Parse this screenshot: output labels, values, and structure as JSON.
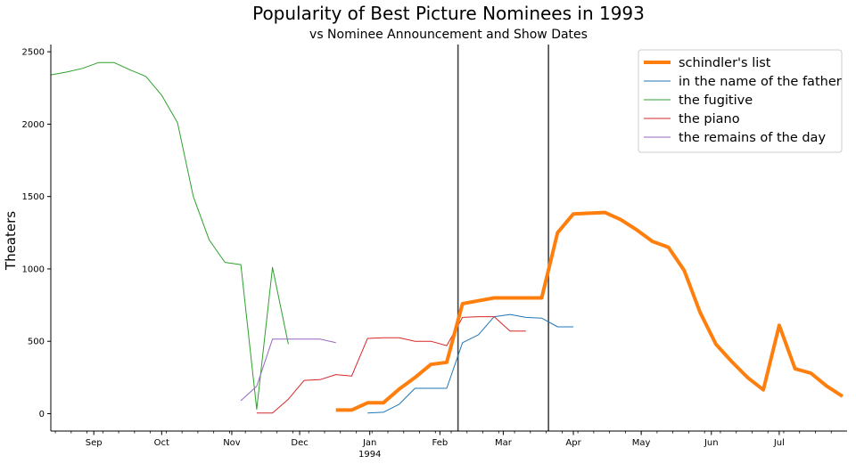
{
  "chart_data": {
    "type": "line",
    "title": "Popularity of Best Picture Nominees in 1993",
    "subtitle": "vs Nominee Announcement and Show Dates",
    "xlabel": "",
    "ylabel": "Theaters",
    "xlim": [
      "1993-08-13",
      "1994-07-31"
    ],
    "ylim": [
      -120,
      2550
    ],
    "yticks": [
      0,
      500,
      1000,
      1500,
      2000,
      2500
    ],
    "xticks": [
      {
        "date": "1993-09-01",
        "label": "Sep"
      },
      {
        "date": "1993-10-01",
        "label": "Oct"
      },
      {
        "date": "1993-11-01",
        "label": "Nov"
      },
      {
        "date": "1993-12-01",
        "label": "Dec"
      },
      {
        "date": "1994-01-01",
        "label": "Jan",
        "sublabel": "1994"
      },
      {
        "date": "1994-02-01",
        "label": "Feb"
      },
      {
        "date": "1994-03-01",
        "label": "Mar"
      },
      {
        "date": "1994-04-01",
        "label": "Apr"
      },
      {
        "date": "1994-05-01",
        "label": "May"
      },
      {
        "date": "1994-06-01",
        "label": "Jun"
      },
      {
        "date": "1994-07-01",
        "label": "Jul"
      }
    ],
    "vlines": [
      "1994-02-09",
      "1994-03-21"
    ],
    "grid": false,
    "legend_position": "top-right",
    "series": [
      {
        "name": "schindler's list",
        "color": "#ff7f0e",
        "linewidth": 4,
        "x": [
          "1993-12-17",
          "1993-12-24",
          "1993-12-31",
          "1994-01-07",
          "1994-01-14",
          "1994-01-21",
          "1994-01-28",
          "1994-02-04",
          "1994-02-11",
          "1994-02-18",
          "1994-02-25",
          "1994-03-04",
          "1994-03-11",
          "1994-03-18",
          "1994-03-25",
          "1994-04-01",
          "1994-04-08",
          "1994-04-15",
          "1994-04-22",
          "1994-04-29",
          "1994-05-06",
          "1994-05-13",
          "1994-05-20",
          "1994-05-27",
          "1994-06-03",
          "1994-06-10",
          "1994-06-17",
          "1994-06-24",
          "1994-07-01",
          "1994-07-08",
          "1994-07-15",
          "1994-07-22",
          "1994-07-29"
        ],
        "y": [
          25,
          25,
          75,
          75,
          170,
          250,
          340,
          355,
          760,
          780,
          800,
          800,
          800,
          800,
          1250,
          1380,
          1385,
          1390,
          1340,
          1270,
          1190,
          1150,
          990,
          700,
          480,
          360,
          250,
          165,
          610,
          310,
          280,
          190,
          120
        ]
      },
      {
        "name": "in the name of the father",
        "color": "#1f77b4",
        "linewidth": 1,
        "x": [
          "1993-12-31",
          "1994-01-07",
          "1994-01-14",
          "1994-01-21",
          "1994-01-28",
          "1994-02-04",
          "1994-02-11",
          "1994-02-18",
          "1994-02-25",
          "1994-03-04",
          "1994-03-11",
          "1994-03-18",
          "1994-03-25",
          "1994-04-01"
        ],
        "y": [
          5,
          10,
          65,
          175,
          175,
          175,
          490,
          545,
          670,
          685,
          665,
          660,
          600,
          600
        ]
      },
      {
        "name": "the fugitive",
        "color": "#2ca02c",
        "linewidth": 1,
        "x": [
          "1993-08-13",
          "1993-08-20",
          "1993-08-27",
          "1993-09-03",
          "1993-09-10",
          "1993-09-17",
          "1993-09-24",
          "1993-10-01",
          "1993-10-08",
          "1993-10-15",
          "1993-10-22",
          "1993-10-29",
          "1993-11-05",
          "1993-11-12",
          "1993-11-19",
          "1993-11-26"
        ],
        "y": [
          2340,
          2360,
          2385,
          2425,
          2425,
          2375,
          2330,
          2200,
          2010,
          1500,
          1200,
          1045,
          1030,
          30,
          1010,
          480
        ]
      },
      {
        "name": "the piano",
        "color": "#d62728",
        "linewidth": 1,
        "x": [
          "1993-11-12",
          "1993-11-19",
          "1993-11-26",
          "1993-12-03",
          "1993-12-10",
          "1993-12-17",
          "1993-12-24",
          "1993-12-31",
          "1994-01-07",
          "1994-01-14",
          "1994-01-21",
          "1994-01-28",
          "1994-02-04",
          "1994-02-11",
          "1994-02-18",
          "1994-02-25",
          "1994-03-04",
          "1994-03-11"
        ],
        "y": [
          5,
          5,
          100,
          230,
          235,
          270,
          260,
          520,
          525,
          525,
          500,
          500,
          470,
          665,
          670,
          670,
          570,
          570
        ]
      },
      {
        "name": "the remains of the day",
        "color": "#9467bd",
        "linewidth": 1,
        "x": [
          "1993-11-05",
          "1993-11-12",
          "1993-11-19",
          "1993-11-26",
          "1993-12-03",
          "1993-12-10",
          "1993-12-17"
        ],
        "y": [
          90,
          190,
          515,
          515,
          515,
          515,
          490
        ]
      }
    ]
  }
}
